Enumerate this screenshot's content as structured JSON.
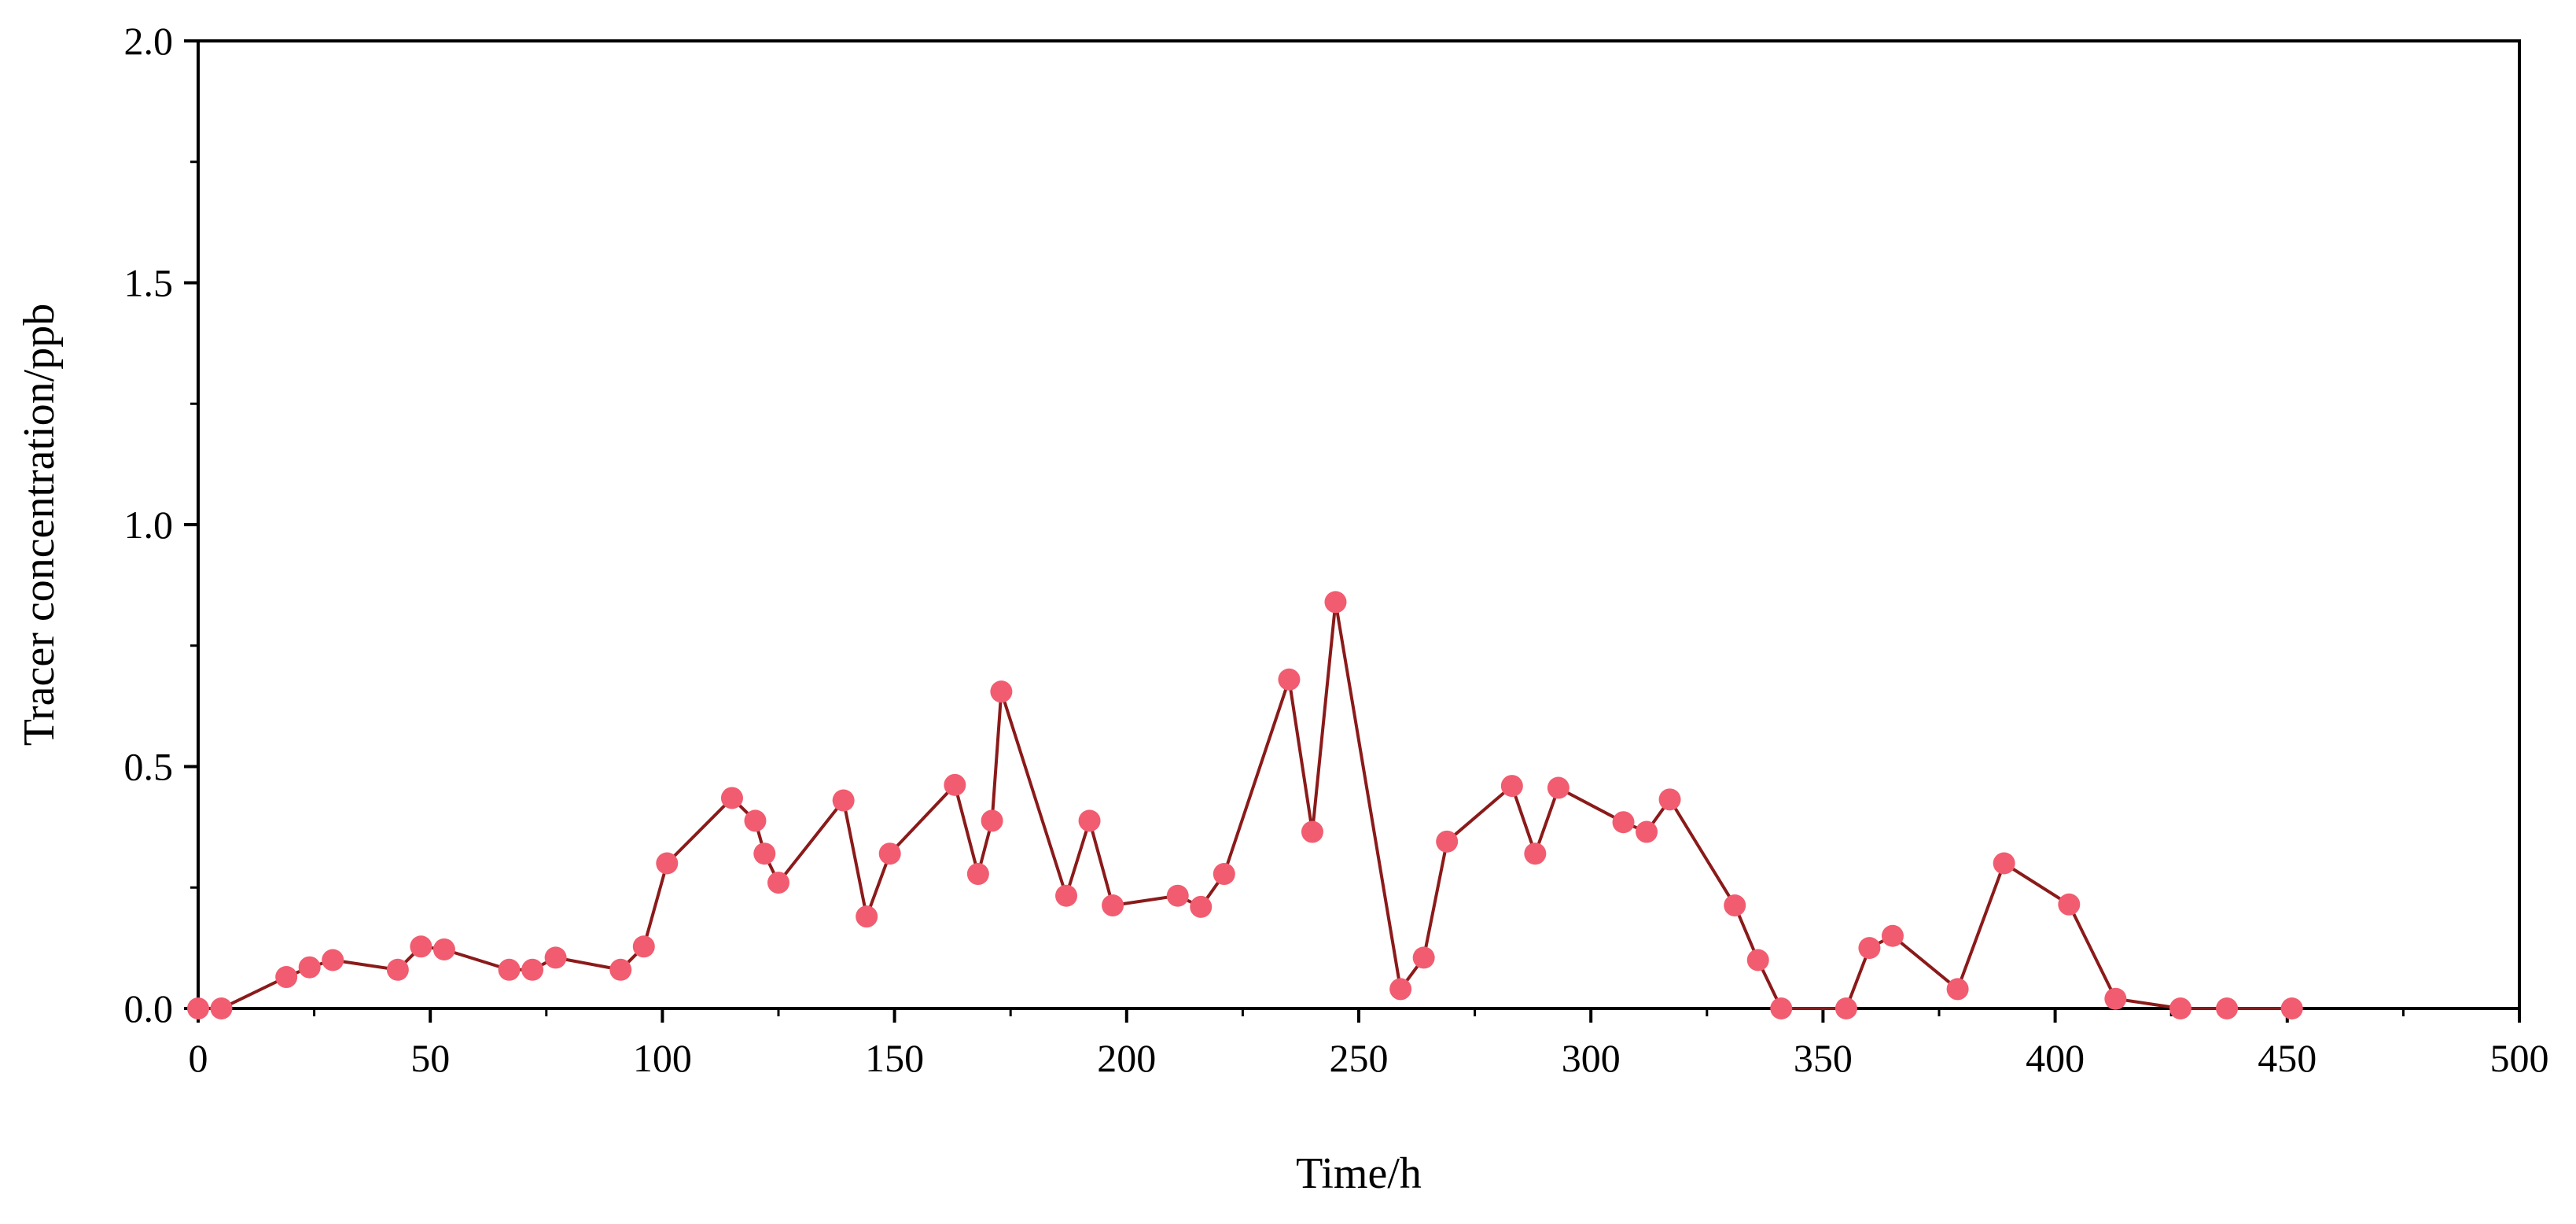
{
  "chart_data": {
    "type": "line",
    "xlabel": "Time/h",
    "ylabel": "Tracer concentration/ppb",
    "xlim": [
      0,
      500
    ],
    "ylim": [
      0,
      2.0
    ],
    "x_ticks": [
      0,
      50,
      100,
      150,
      200,
      250,
      300,
      350,
      400,
      450,
      500
    ],
    "x_tick_labels": [
      "0",
      "50",
      "100",
      "150",
      "200",
      "250",
      "300",
      "350",
      "400",
      "450",
      "500"
    ],
    "y_ticks": [
      0,
      0.5,
      1.0,
      1.5,
      2.0
    ],
    "y_tick_labels": [
      "0.0",
      "0.5",
      "1.0",
      "1.5",
      "2.0"
    ],
    "grid": false,
    "line_color": "#8b1a1a",
    "marker_color": "#f25c70",
    "series": [
      {
        "x": [
          0,
          5,
          19,
          24,
          29,
          43,
          48,
          53,
          67,
          72,
          77,
          91,
          96,
          101,
          115,
          120,
          122,
          125,
          139,
          144,
          149,
          163,
          168,
          171,
          173,
          187,
          192,
          197,
          211,
          216,
          221,
          235,
          240,
          245,
          259,
          264,
          269,
          283,
          288,
          293,
          307,
          312,
          317,
          331,
          336,
          341,
          355,
          360,
          365,
          379,
          389,
          403,
          413,
          427,
          437,
          451
        ],
        "y": [
          0,
          0,
          0.065,
          0.085,
          0.1,
          0.08,
          0.128,
          0.122,
          0.08,
          0.08,
          0.105,
          0.08,
          0.128,
          0.3,
          0.435,
          0.388,
          0.32,
          0.26,
          0.43,
          0.19,
          0.32,
          0.462,
          0.278,
          0.388,
          0.655,
          0.233,
          0.388,
          0.213,
          0.233,
          0.21,
          0.278,
          0.68,
          0.365,
          0.84,
          0.04,
          0.105,
          0.345,
          0.46,
          0.32,
          0.456,
          0.385,
          0.365,
          0.432,
          0.213,
          0.1,
          0,
          0,
          0.125,
          0.15,
          0.04,
          0.3,
          0.215,
          0.02,
          0,
          0,
          0
        ]
      }
    ]
  }
}
